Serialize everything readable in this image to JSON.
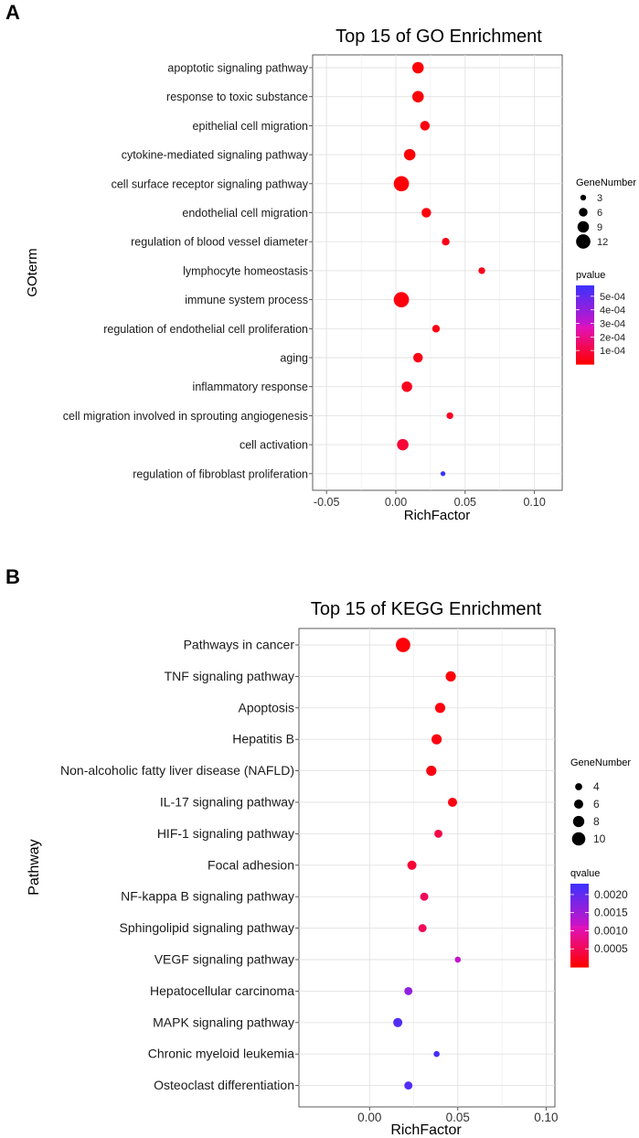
{
  "chart_data": [
    {
      "panel": "A",
      "type": "scatter",
      "title": "Top 15 of GO Enrichment",
      "xlabel": "RichFactor",
      "ylabel": "GOterm",
      "xlim": [
        -0.06,
        0.12
      ],
      "xticks": [
        -0.05,
        0.0,
        0.05,
        0.1
      ],
      "xtick_labels": [
        "-0.05",
        "0.00",
        "0.05",
        "0.10"
      ],
      "categories": [
        "apoptotic signaling pathway",
        "response to toxic substance",
        "epithelial cell migration",
        "cytokine-mediated signaling pathway",
        "cell surface receptor signaling pathway",
        "endothelial cell migration",
        "regulation of blood vessel diameter",
        "lymphocyte homeostasis",
        "immune system process",
        "regulation of endothelial cell proliferation",
        "aging",
        "inflammatory response",
        "cell migration involved in sprouting angiogenesis",
        "cell activation",
        "regulation of fibroblast proliferation"
      ],
      "points": [
        {
          "x": 0.016,
          "size": 9,
          "color": 1e-05
        },
        {
          "x": 0.016,
          "size": 9,
          "color": 1e-05
        },
        {
          "x": 0.021,
          "size": 7,
          "color": 2e-05
        },
        {
          "x": 0.01,
          "size": 9,
          "color": 1e-05
        },
        {
          "x": 0.004,
          "size": 13,
          "color": 1e-05
        },
        {
          "x": 0.022,
          "size": 7,
          "color": 2e-05
        },
        {
          "x": 0.036,
          "size": 5,
          "color": 3e-05
        },
        {
          "x": 0.062,
          "size": 4,
          "color": 4e-05
        },
        {
          "x": 0.004,
          "size": 13,
          "color": 2e-05
        },
        {
          "x": 0.029,
          "size": 5,
          "color": 3e-05
        },
        {
          "x": 0.016,
          "size": 7,
          "color": 3e-05
        },
        {
          "x": 0.008,
          "size": 8,
          "color": 4e-05
        },
        {
          "x": 0.039,
          "size": 4,
          "color": 5e-05
        },
        {
          "x": 0.005,
          "size": 9,
          "color": 8e-05
        },
        {
          "x": 0.034,
          "size": 2,
          "color": 0.00058
        }
      ],
      "size_legend": {
        "title": "GeneNumber",
        "values": [
          3,
          6,
          9,
          12
        ],
        "labels": [
          "3",
          "6",
          "9",
          "12"
        ]
      },
      "color_legend": {
        "title": "pvalue",
        "range": [
          0,
          0.00058
        ],
        "ticks": [
          0.0001,
          0.0002,
          0.0003,
          0.0004,
          0.0005
        ],
        "labels": [
          "1e-04",
          "2e-04",
          "3e-04",
          "4e-04",
          "5e-04"
        ],
        "low_color": "#ff0000",
        "high_color": "#3a32ff"
      }
    },
    {
      "panel": "B",
      "type": "scatter",
      "title": "Top 15 of KEGG Enrichment",
      "xlabel": "RichFactor",
      "ylabel": "Pathway",
      "xlim": [
        -0.04,
        0.105
      ],
      "xticks": [
        0.0,
        0.05,
        0.1
      ],
      "xtick_labels": [
        "0.00",
        "0.05",
        "0.10"
      ],
      "categories": [
        "Pathways in cancer",
        "TNF signaling pathway",
        "Apoptosis",
        "Hepatitis B",
        "Non-alcoholic fatty liver disease (NAFLD)",
        "IL-17 signaling pathway",
        "HIF-1 signaling pathway",
        "Focal adhesion",
        "NF-kappa B signaling pathway",
        "Sphingolipid signaling pathway",
        "VEGF signaling pathway",
        "Hepatocellular carcinoma",
        "MAPK signaling pathway",
        "Chronic myeloid leukemia",
        "Osteoclast differentiation"
      ],
      "points": [
        {
          "x": 0.019,
          "size": 11,
          "color": 5e-05
        },
        {
          "x": 0.046,
          "size": 7,
          "color": 5e-05
        },
        {
          "x": 0.04,
          "size": 7,
          "color": 0.0001
        },
        {
          "x": 0.038,
          "size": 7,
          "color": 0.0001
        },
        {
          "x": 0.035,
          "size": 7,
          "color": 0.0001
        },
        {
          "x": 0.047,
          "size": 6,
          "color": 0.0001
        },
        {
          "x": 0.039,
          "size": 5,
          "color": 0.0004
        },
        {
          "x": 0.024,
          "size": 6,
          "color": 0.0003
        },
        {
          "x": 0.031,
          "size": 5,
          "color": 0.0005
        },
        {
          "x": 0.03,
          "size": 5,
          "color": 0.0005
        },
        {
          "x": 0.05,
          "size": 3,
          "color": 0.0012
        },
        {
          "x": 0.022,
          "size": 5,
          "color": 0.0016
        },
        {
          "x": 0.016,
          "size": 6,
          "color": 0.0021
        },
        {
          "x": 0.038,
          "size": 3,
          "color": 0.0022
        },
        {
          "x": 0.022,
          "size": 5,
          "color": 0.0021
        }
      ],
      "size_legend": {
        "title": "GeneNumber",
        "values": [
          4,
          6,
          8,
          10
        ],
        "labels": [
          "4",
          "6",
          "8",
          "10"
        ]
      },
      "color_legend": {
        "title": "qvalue",
        "range": [
          0,
          0.0023
        ],
        "ticks": [
          0.0005,
          0.001,
          0.0015,
          0.002
        ],
        "labels": [
          "0.0005",
          "0.0010",
          "0.0015",
          "0.0020"
        ],
        "low_color": "#ff0000",
        "high_color": "#3a32ff"
      }
    }
  ]
}
